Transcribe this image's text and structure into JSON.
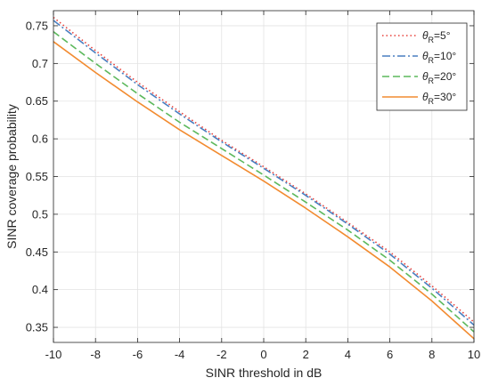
{
  "chart_data": {
    "type": "line",
    "xlabel": "SINR threshold in dB",
    "ylabel": "SINR coverage probability",
    "xlim": [
      -10,
      10
    ],
    "ylim": [
      0.33,
      0.77
    ],
    "xticks": [
      -10,
      -8,
      -6,
      -4,
      -2,
      0,
      2,
      4,
      6,
      8,
      10
    ],
    "yticks": [
      0.35,
      0.4,
      0.45,
      0.5,
      0.55,
      0.6,
      0.65,
      0.7,
      0.75
    ],
    "grid": true,
    "legend_position": "top-right",
    "x": [
      -10,
      -8,
      -6,
      -4,
      -2,
      0,
      2,
      4,
      6,
      8,
      10
    ],
    "series": [
      {
        "name": "θR=5°",
        "label_parts": {
          "symbol": "θ",
          "sub": "R",
          "rest": "=5°"
        },
        "color": "#e8403a",
        "dash": "1.5,3",
        "values": [
          0.761,
          0.717,
          0.675,
          0.636,
          0.598,
          0.563,
          0.527,
          0.489,
          0.45,
          0.405,
          0.357
        ]
      },
      {
        "name": "θR=10°",
        "label_parts": {
          "symbol": "θ",
          "sub": "R",
          "rest": "=10°"
        },
        "color": "#4a7fc1",
        "dash": "9,3,2,3",
        "values": [
          0.757,
          0.714,
          0.672,
          0.633,
          0.596,
          0.561,
          0.525,
          0.487,
          0.447,
          0.402,
          0.353
        ]
      },
      {
        "name": "θR=20°",
        "label_parts": {
          "symbol": "θ",
          "sub": "R",
          "rest": "=20°"
        },
        "color": "#5cb85c",
        "dash": "8,4",
        "values": [
          0.742,
          0.7,
          0.66,
          0.622,
          0.587,
          0.552,
          0.516,
          0.479,
          0.439,
          0.394,
          0.344
        ]
      },
      {
        "name": "θR=30°",
        "label_parts": {
          "symbol": "θ",
          "sub": "R",
          "rest": "=30°"
        },
        "color": "#f28b30",
        "dash": "",
        "values": [
          0.729,
          0.688,
          0.649,
          0.612,
          0.578,
          0.544,
          0.508,
          0.47,
          0.43,
          0.385,
          0.335
        ]
      }
    ]
  }
}
